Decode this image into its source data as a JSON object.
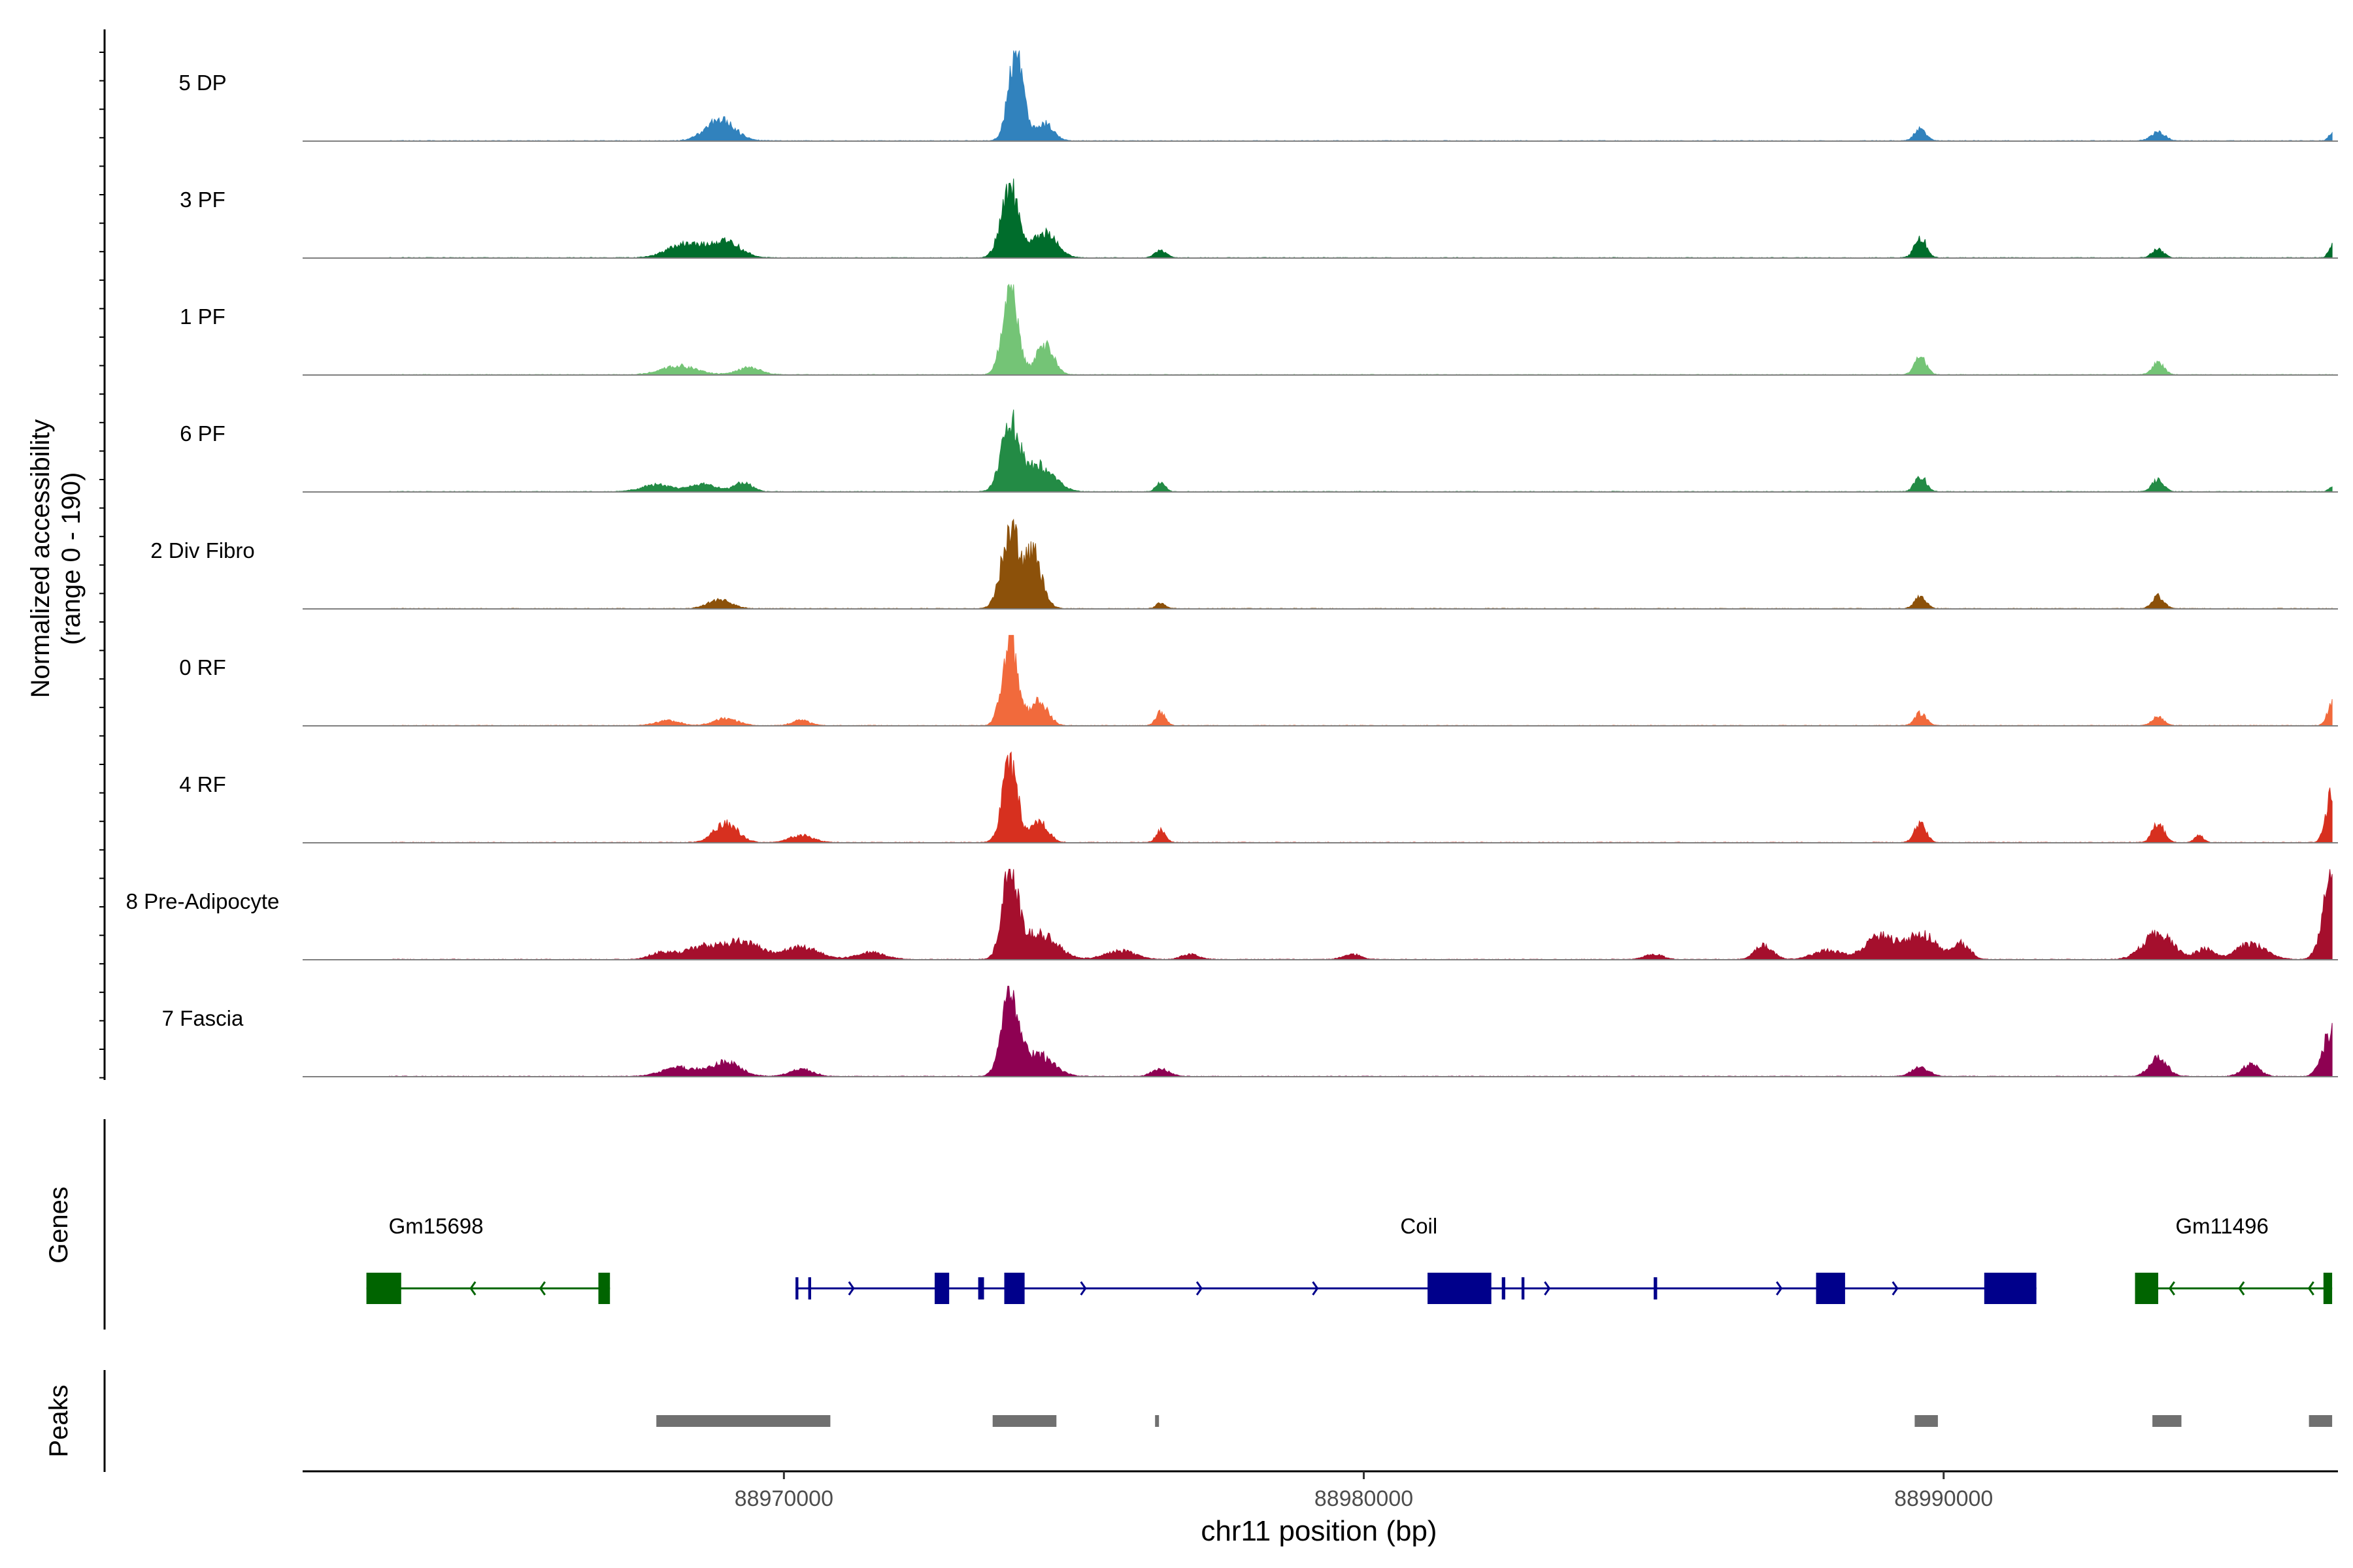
{
  "chart_data": {
    "type": "area",
    "title": "",
    "chromosome": "chr11",
    "xlabel": "chr11 position (bp)",
    "ylabel_line1": "Normalized accessibility",
    "ylabel_line2": "(range 0 - 190)",
    "yrange": [
      0,
      190
    ],
    "xlim": [
      88961700,
      88996800
    ],
    "x_ticks": [
      88970000,
      88980000,
      88990000
    ],
    "x_tick_labels": [
      "88970000",
      "88980000",
      "88990000"
    ],
    "panel_labels": {
      "genes": "Genes",
      "peaks": "Peaks"
    },
    "tracks": [
      {
        "name": "5 DP",
        "color": "#3182BD",
        "peaks": [
          [
            88968900,
            0.24,
            250
          ],
          [
            88974000,
            1.0,
            130
          ],
          [
            88974500,
            0.2,
            150
          ],
          [
            88989600,
            0.14,
            100
          ],
          [
            88993700,
            0.1,
            120
          ],
          [
            88996700,
            0.1,
            60
          ]
        ]
      },
      {
        "name": "3 PF",
        "color": "#006D2C",
        "peaks": [
          [
            88968300,
            0.16,
            300
          ],
          [
            88969000,
            0.18,
            250
          ],
          [
            88973900,
            0.8,
            150
          ],
          [
            88974500,
            0.3,
            200
          ],
          [
            88976500,
            0.08,
            100
          ],
          [
            88989600,
            0.24,
            100
          ],
          [
            88993700,
            0.1,
            100
          ],
          [
            88996700,
            0.16,
            60
          ]
        ]
      },
      {
        "name": "1 PF",
        "color": "#74C476",
        "peaks": [
          [
            88968200,
            0.1,
            300
          ],
          [
            88969400,
            0.08,
            200
          ],
          [
            88973900,
            1.0,
            130
          ],
          [
            88974500,
            0.34,
            150
          ],
          [
            88989600,
            0.2,
            100
          ],
          [
            88993700,
            0.14,
            100
          ]
        ]
      },
      {
        "name": "6 PF",
        "color": "#238B45",
        "peaks": [
          [
            88967800,
            0.08,
            250
          ],
          [
            88968600,
            0.08,
            250
          ],
          [
            88969300,
            0.1,
            150
          ],
          [
            88973900,
            0.78,
            150
          ],
          [
            88974400,
            0.3,
            250
          ],
          [
            88976500,
            0.1,
            80
          ],
          [
            88989600,
            0.18,
            100
          ],
          [
            88993700,
            0.14,
            100
          ],
          [
            88996700,
            0.06,
            60
          ]
        ]
      },
      {
        "name": "2 Div Fibro",
        "color": "#8C510A",
        "peaks": [
          [
            88968900,
            0.1,
            200
          ],
          [
            88973900,
            0.88,
            150
          ],
          [
            88974300,
            0.62,
            150
          ],
          [
            88976500,
            0.06,
            80
          ],
          [
            88989600,
            0.14,
            100
          ],
          [
            88993700,
            0.14,
            100
          ]
        ]
      },
      {
        "name": "0 RF",
        "color": "#F16A3C",
        "peaks": [
          [
            88968000,
            0.06,
            200
          ],
          [
            88969000,
            0.08,
            200
          ],
          [
            88970300,
            0.06,
            150
          ],
          [
            88973900,
            0.98,
            130
          ],
          [
            88974400,
            0.28,
            150
          ],
          [
            88976500,
            0.16,
            80
          ],
          [
            88989600,
            0.14,
            100
          ],
          [
            88993700,
            0.1,
            100
          ],
          [
            88996700,
            0.26,
            80
          ]
        ]
      },
      {
        "name": "4 RF",
        "color": "#D7301F",
        "peaks": [
          [
            88969000,
            0.22,
            200
          ],
          [
            88970300,
            0.08,
            200
          ],
          [
            88973900,
            0.9,
            130
          ],
          [
            88974400,
            0.24,
            150
          ],
          [
            88976500,
            0.14,
            80
          ],
          [
            88989600,
            0.22,
            100
          ],
          [
            88993700,
            0.22,
            100
          ],
          [
            88994400,
            0.08,
            80
          ],
          [
            88996700,
            0.58,
            100
          ]
        ]
      },
      {
        "name": "8 Pre-Adipocyte",
        "color": "#A50F2D",
        "peaks": [
          [
            88967900,
            0.08,
            200
          ],
          [
            88968600,
            0.14,
            300
          ],
          [
            88969300,
            0.2,
            300
          ],
          [
            88970300,
            0.14,
            300
          ],
          [
            88971500,
            0.08,
            250
          ],
          [
            88973900,
            1.0,
            130
          ],
          [
            88974400,
            0.3,
            300
          ],
          [
            88975800,
            0.1,
            250
          ],
          [
            88977000,
            0.06,
            150
          ],
          [
            88979800,
            0.06,
            150
          ],
          [
            88985000,
            0.06,
            150
          ],
          [
            88986900,
            0.16,
            150
          ],
          [
            88988000,
            0.1,
            250
          ],
          [
            88988900,
            0.26,
            250
          ],
          [
            88989600,
            0.3,
            250
          ],
          [
            88990300,
            0.18,
            150
          ],
          [
            88993700,
            0.3,
            250
          ],
          [
            88994500,
            0.12,
            150
          ],
          [
            88995300,
            0.18,
            250
          ],
          [
            88996700,
            1.02,
            150
          ]
        ]
      },
      {
        "name": "7 Fascia",
        "color": "#8E0152",
        "peaks": [
          [
            88968200,
            0.1,
            300
          ],
          [
            88969000,
            0.16,
            250
          ],
          [
            88970300,
            0.08,
            200
          ],
          [
            88973900,
            0.88,
            150
          ],
          [
            88974400,
            0.24,
            250
          ],
          [
            88976500,
            0.08,
            150
          ],
          [
            88989600,
            0.1,
            150
          ],
          [
            88993700,
            0.22,
            150
          ],
          [
            88995300,
            0.14,
            150
          ],
          [
            88996700,
            0.55,
            150
          ]
        ]
      }
    ],
    "genes": [
      {
        "name": "Gm15698",
        "strand": "-",
        "color": "#006400",
        "start": 88962800,
        "end": 88967000,
        "label_pos": 88964000,
        "exons": [
          [
            88962800,
            88963400,
            "cds"
          ],
          [
            88966800,
            88967000,
            "cds"
          ]
        ]
      },
      {
        "name": "Coil",
        "strand": "+",
        "color": "#00008B",
        "start": 88970200,
        "end": 88991600,
        "label_pos": 88980950,
        "exons": [
          [
            88970200,
            88970250,
            "utr"
          ],
          [
            88970420,
            88970470,
            "utr"
          ],
          [
            88972600,
            88972850,
            "cds"
          ],
          [
            88973350,
            88973450,
            "utr"
          ],
          [
            88973800,
            88974150,
            "cds"
          ],
          [
            88981100,
            88982200,
            "cds"
          ],
          [
            88982380,
            88982440,
            "utr"
          ],
          [
            88982720,
            88982770,
            "utr"
          ],
          [
            88985000,
            88985060,
            "utr"
          ],
          [
            88987800,
            88988300,
            "cds"
          ],
          [
            88990700,
            88991600,
            "cds"
          ]
        ]
      },
      {
        "name": "Gm11496",
        "strand": "-",
        "color": "#006400",
        "start": 88993300,
        "end": 88996700,
        "label_pos": 88994800,
        "exons": [
          [
            88993300,
            88993700,
            "cds"
          ],
          [
            88996550,
            88996700,
            "cds"
          ]
        ]
      }
    ],
    "peak_regions": [
      [
        88967800,
        88970800
      ],
      [
        88973600,
        88974700
      ],
      [
        88976400,
        88976450
      ],
      [
        88989500,
        88989900
      ],
      [
        88993600,
        88994100
      ],
      [
        88996300,
        88996700
      ]
    ]
  }
}
